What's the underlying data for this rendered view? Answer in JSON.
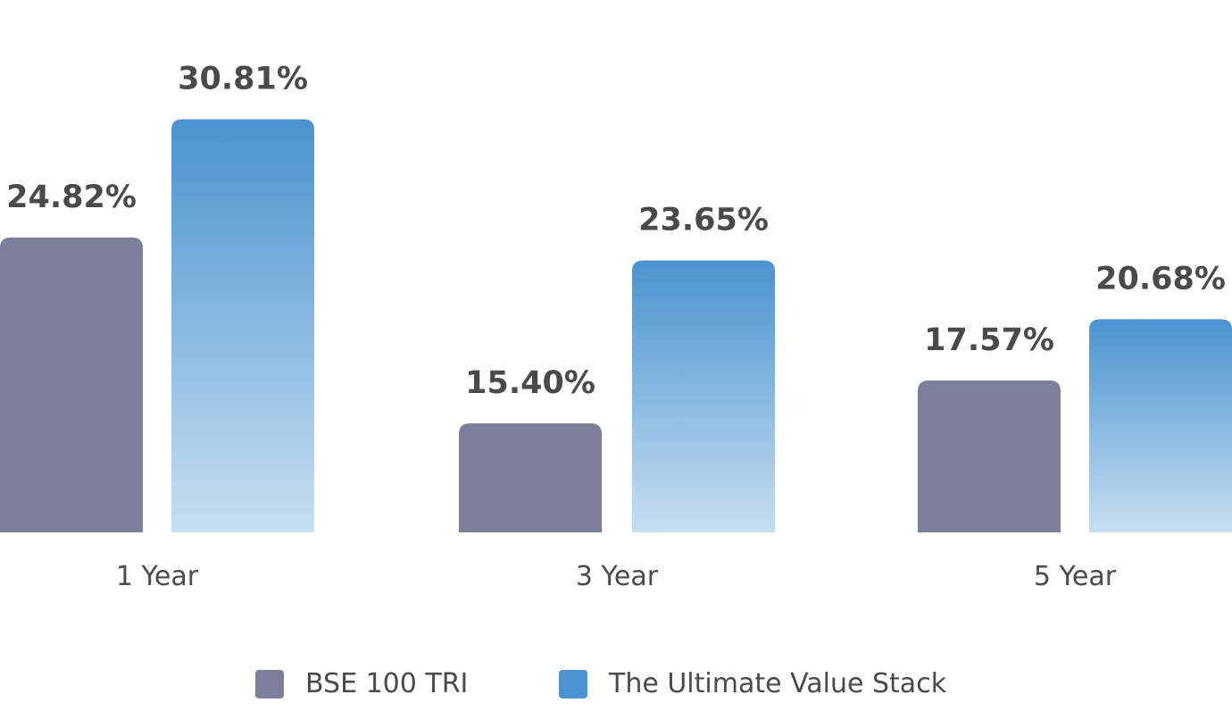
{
  "chart_data": {
    "type": "bar",
    "title": "",
    "xlabel": "",
    "ylabel": "",
    "categories": [
      "1 Year",
      "3 Year",
      "5 Year"
    ],
    "series": [
      {
        "name": "BSE 100 TRI",
        "values": [
          24.82,
          15.4,
          17.57
        ],
        "labels": [
          "24.82%",
          "15.40%",
          "17.57%"
        ],
        "color": "#7b7f99"
      },
      {
        "name": "The Ultimate Value Stack",
        "values": [
          30.81,
          23.65,
          20.68
        ],
        "labels": [
          "30.81%",
          "23.65%",
          "20.68%"
        ],
        "color": "#4a93cf",
        "gradient_end": "#c6def2"
      }
    ],
    "grid": false,
    "legend_position": "bottom",
    "data_labels": true
  }
}
